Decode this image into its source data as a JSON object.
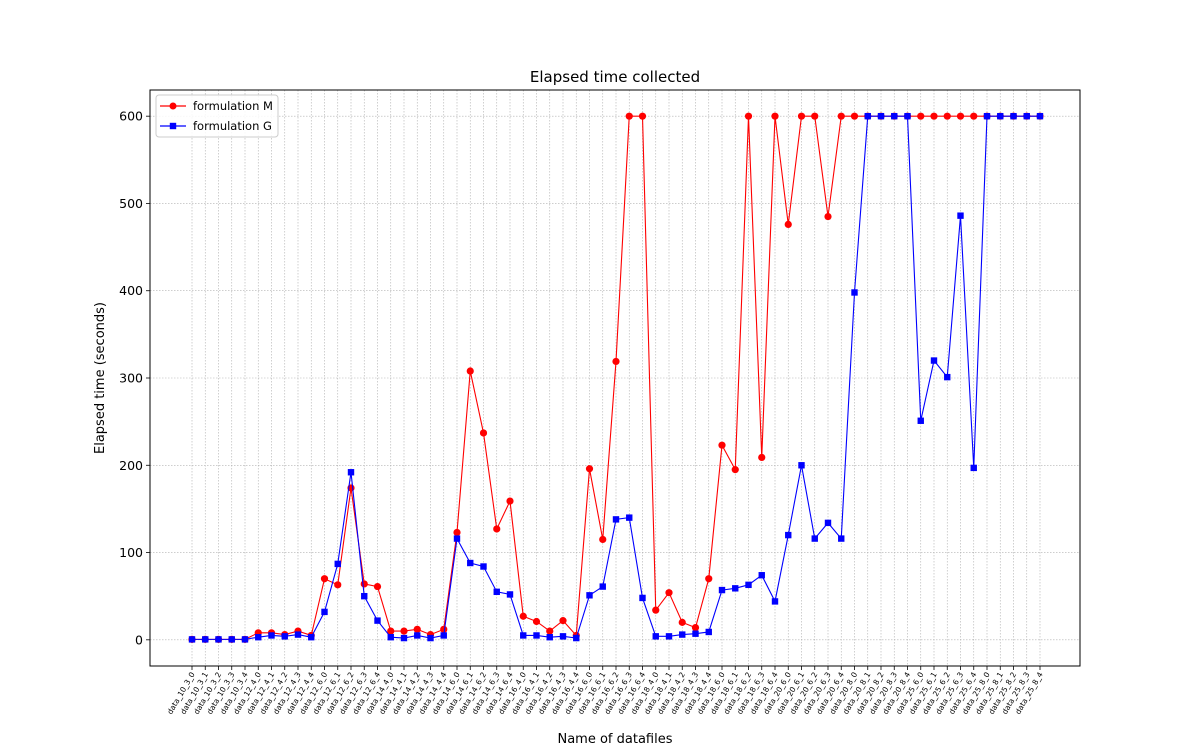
{
  "chart_data": {
    "type": "line",
    "title": "Elapsed time collected",
    "xlabel": "Name of datafiles",
    "ylabel": "Elapsed time (seconds)",
    "ylim": [
      -30,
      630
    ],
    "yticks": [
      0,
      100,
      200,
      300,
      400,
      500,
      600
    ],
    "grid": true,
    "legend_position": "top-left",
    "categories": [
      "data_10_3_0",
      "data_10_3_1",
      "data_10_3_2",
      "data_10_3_3",
      "data_10_3_4",
      "data_12_4_0",
      "data_12_4_1",
      "data_12_4_2",
      "data_12_4_3",
      "data_12_4_4",
      "data_12_6_0",
      "data_12_6_1",
      "data_12_6_2",
      "data_12_6_3",
      "data_12_6_4",
      "data_14_4_0",
      "data_14_4_1",
      "data_14_4_2",
      "data_14_4_3",
      "data_14_4_4",
      "data_14_6_0",
      "data_14_6_1",
      "data_14_6_2",
      "data_14_6_3",
      "data_14_6_4",
      "data_16_4_0",
      "data_16_4_1",
      "data_16_4_2",
      "data_16_4_3",
      "data_16_4_4",
      "data_16_6_0",
      "data_16_6_1",
      "data_16_6_2",
      "data_16_6_3",
      "data_16_6_4",
      "data_18_4_0",
      "data_18_4_1",
      "data_18_4_2",
      "data_18_4_3",
      "data_18_4_4",
      "data_18_6_0",
      "data_18_6_1",
      "data_18_6_2",
      "data_18_6_3",
      "data_18_6_4",
      "data_20_6_0",
      "data_20_6_1",
      "data_20_6_2",
      "data_20_6_3",
      "data_20_6_4",
      "data_20_8_0",
      "data_20_8_1",
      "data_20_8_2",
      "data_20_8_3",
      "data_20_8_4",
      "data_25_6_0",
      "data_25_6_1",
      "data_25_6_2",
      "data_25_6_3",
      "data_25_6_4",
      "data_25_8_0",
      "data_25_8_1",
      "data_25_8_2",
      "data_25_8_3",
      "data_25_8_4"
    ],
    "series": [
      {
        "name": "formulation M",
        "color": "#ff0000",
        "marker": "circle",
        "values": [
          0.5,
          0.5,
          0.5,
          0.5,
          0.5,
          8,
          8,
          6,
          10,
          5,
          70,
          63,
          174,
          64,
          61,
          10,
          10,
          12,
          6,
          12,
          123,
          308,
          237,
          127,
          159,
          27,
          21,
          10,
          22,
          5,
          196,
          115,
          319,
          600,
          600,
          34,
          54,
          20,
          14,
          70,
          223,
          195,
          600,
          209,
          600,
          476,
          600,
          600,
          485,
          600,
          600,
          600,
          600,
          600,
          600,
          600,
          600,
          600,
          600,
          600,
          600,
          600,
          600,
          600,
          600
        ]
      },
      {
        "name": "formulation G",
        "color": "#0000ff",
        "marker": "square",
        "values": [
          0.5,
          0.5,
          0.5,
          0.5,
          0.5,
          3,
          5,
          4,
          6,
          3,
          32,
          87,
          192,
          50,
          22,
          3,
          2,
          5,
          2,
          5,
          116,
          88,
          84,
          55,
          52,
          5,
          5,
          3,
          4,
          2,
          51,
          61,
          138,
          140,
          48,
          4,
          4,
          6,
          7,
          9,
          57,
          59,
          63,
          74,
          44,
          120,
          200,
          116,
          134,
          116,
          398,
          600,
          600,
          600,
          600,
          251,
          320,
          301,
          486,
          197,
          600,
          600,
          600,
          600,
          600
        ]
      }
    ]
  }
}
